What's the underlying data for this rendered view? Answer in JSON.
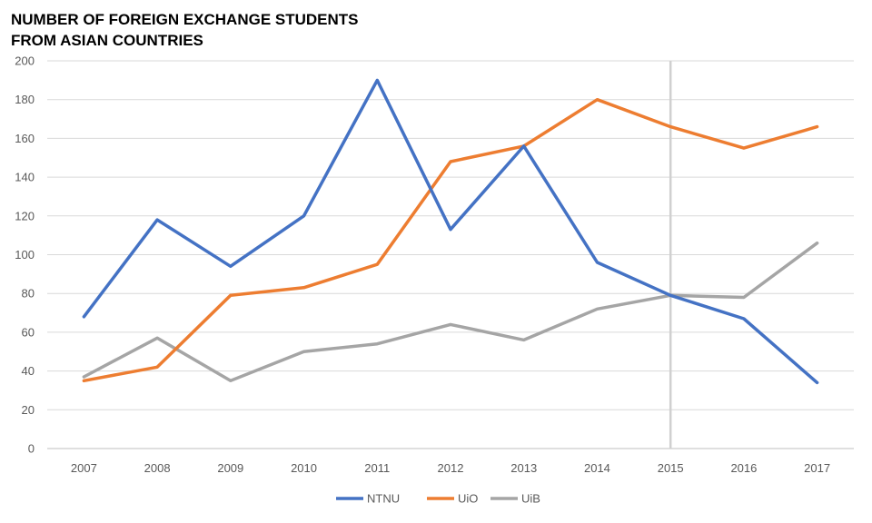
{
  "chart_data": {
    "type": "line",
    "title_lines": [
      "NUMBER OF FOREIGN EXCHANGE STUDENTS",
      "FROM ASIAN COUNTRIES"
    ],
    "xlabel": "",
    "ylabel": "",
    "categories": [
      "2007",
      "2008",
      "2009",
      "2010",
      "2011",
      "2012",
      "2013",
      "2014",
      "2015",
      "2016",
      "2017"
    ],
    "ylim": [
      0,
      200
    ],
    "yticks": [
      "0",
      "20",
      "40",
      "60",
      "80",
      "100",
      "120",
      "140",
      "160",
      "180",
      "200"
    ],
    "grid": "horizontal",
    "legend_position": "bottom",
    "marker_line_category": "2015",
    "series": [
      {
        "name": "NTNU",
        "color": "#4472C4",
        "values": [
          68,
          118,
          94,
          120,
          190,
          113,
          156,
          96,
          79,
          67,
          34
        ]
      },
      {
        "name": "UiO",
        "color": "#ED7D31",
        "values": [
          35,
          42,
          79,
          83,
          95,
          148,
          156,
          180,
          166,
          155,
          166
        ]
      },
      {
        "name": "UiB",
        "color": "#A5A5A5",
        "values": [
          37,
          57,
          35,
          50,
          54,
          64,
          56,
          72,
          79,
          78,
          106
        ]
      }
    ]
  }
}
